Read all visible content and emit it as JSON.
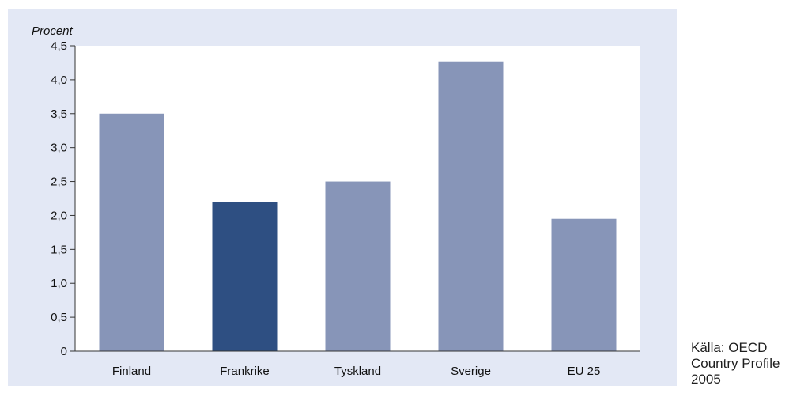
{
  "chart_data": {
    "type": "bar",
    "ylabel": "Procent",
    "xlabel": "",
    "categories": [
      "Finland",
      "Frankrike",
      "Tyskland",
      "Sverige",
      "EU 25"
    ],
    "values": [
      3.5,
      2.2,
      2.5,
      4.27,
      1.95
    ],
    "highlight": [
      false,
      true,
      false,
      false,
      false
    ],
    "ylim": [
      0,
      4.5
    ],
    "yticks": [
      0,
      0.5,
      1.0,
      1.5,
      2.0,
      2.5,
      3.0,
      3.5,
      4.0,
      4.5
    ],
    "ytick_labels": [
      "0",
      "0,5",
      "1,0",
      "1,5",
      "2,0",
      "2,5",
      "3,0",
      "3,5",
      "4,0",
      "4,5"
    ],
    "grid": false,
    "colors": {
      "bar": "#8795b8",
      "highlight": "#2e4f82",
      "panel": "#e3e8f5",
      "plot": "#ffffff",
      "axis": "#333333"
    }
  },
  "source": {
    "text": "Källa: OECD\nCountry Profile\n2005"
  }
}
